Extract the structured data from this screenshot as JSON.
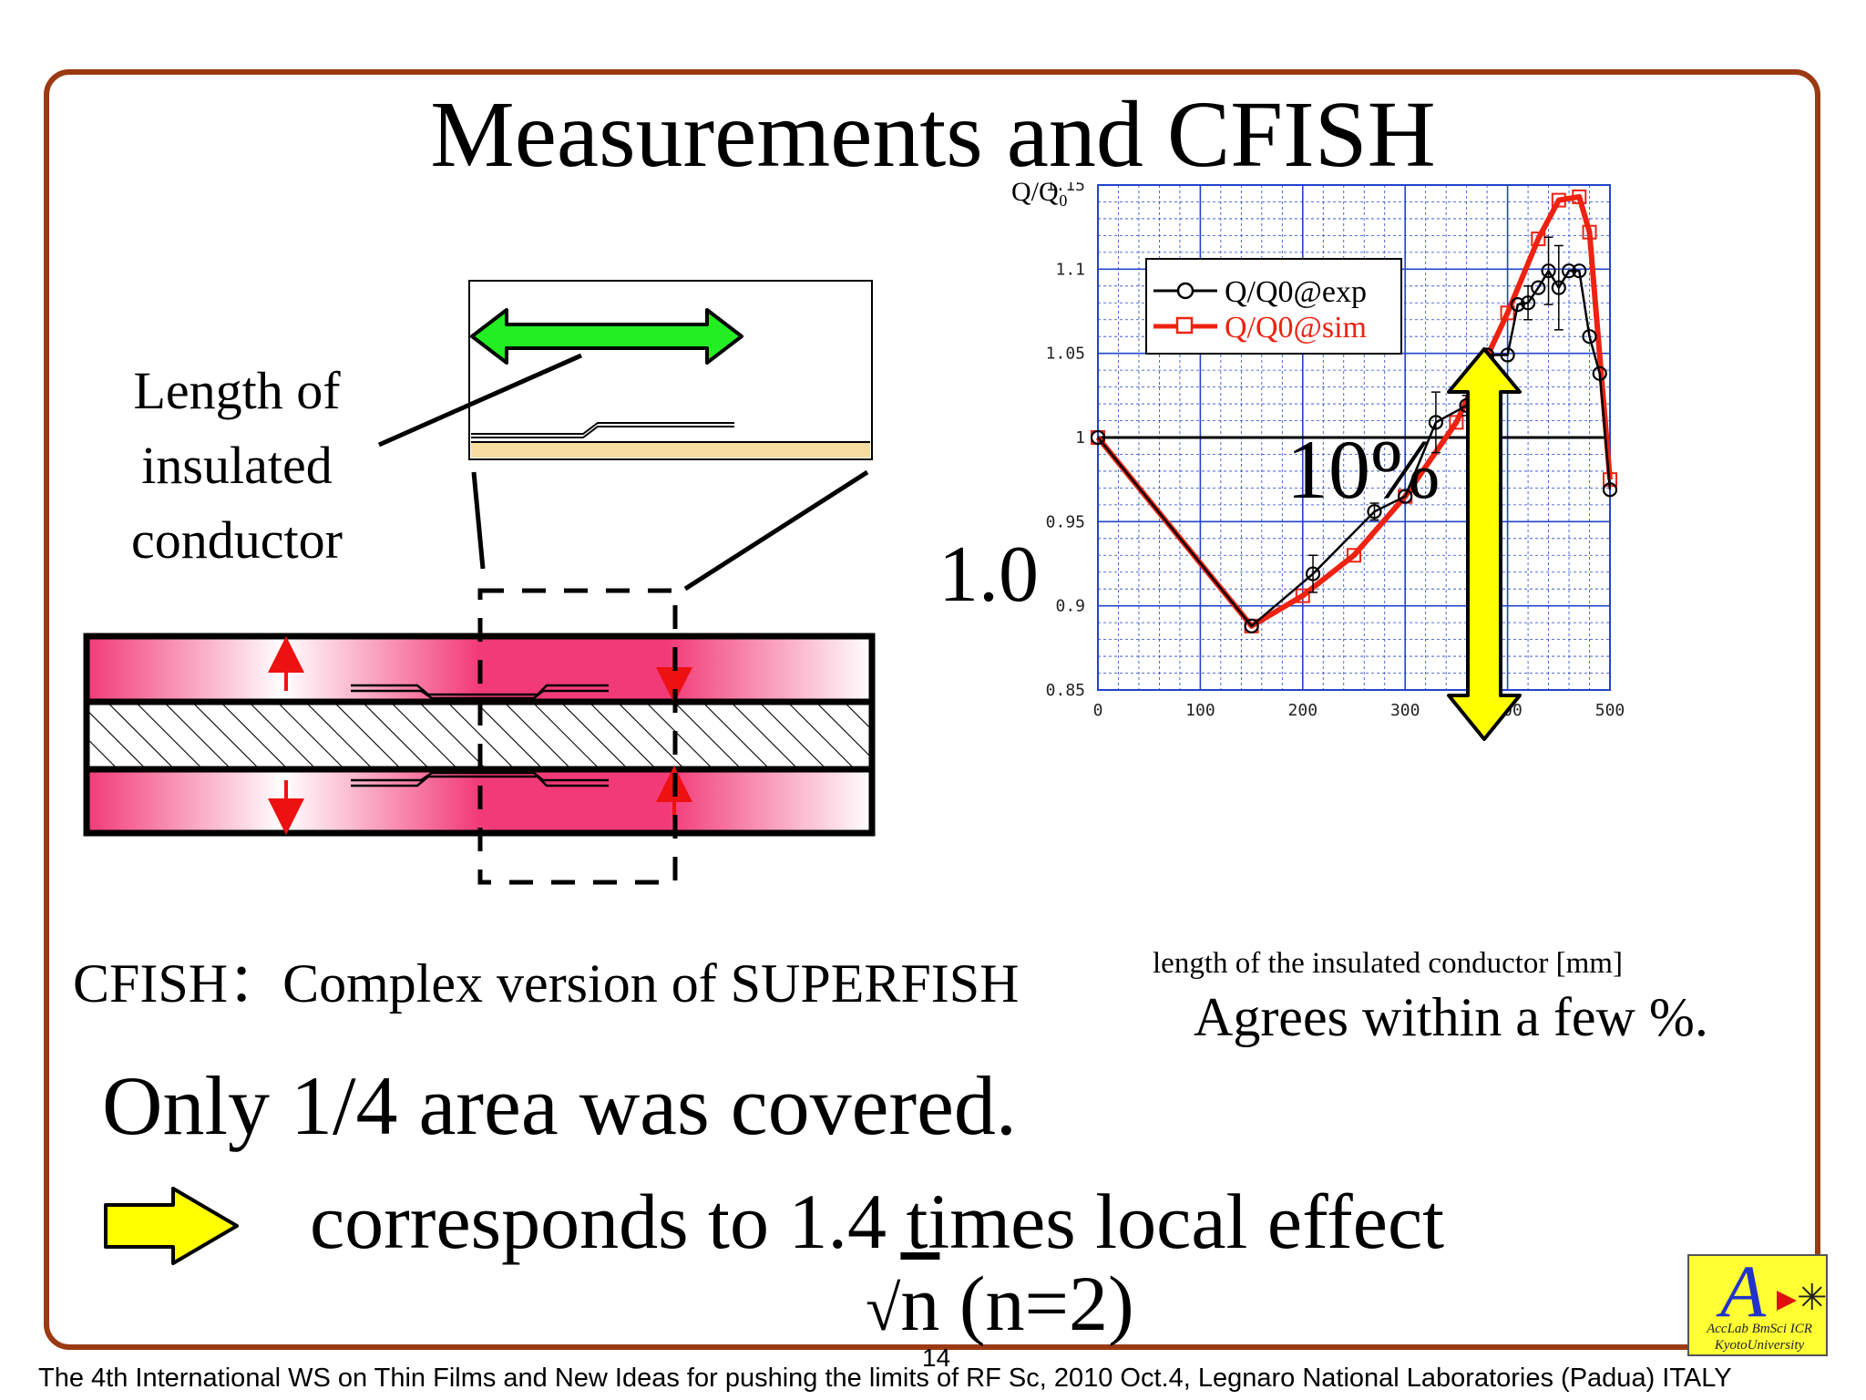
{
  "slide": {
    "title": "Measurements and CFISH",
    "length_label": "Length of insulated conductor",
    "cfish_note": "CFISH：Complex version of SUPERFISH",
    "agree_note": "Agrees within a few %.",
    "coverage_note": "Only 1/4 area was covered.",
    "corresponds_note": "corresponds to 1.4 times local effect",
    "sqrt_radic": "√",
    "sqrt_var": "n",
    "sqrt_rest": " (n=2)",
    "footer": "The 4th International WS on Thin Films  and New Ideas for pushing the limits of RF Sc, 2010 Oct.4, Legnaro National Laboratories (Padua) ITALY",
    "page_number": "14",
    "logo_letter": "A",
    "logo_line1": "AccLab  BmSci  ICR",
    "logo_line2": "KyotoUniversity"
  },
  "annotations": {
    "percent_label": "10%",
    "baseline_label": "1.0"
  },
  "colors": {
    "frame": "#9b3a12",
    "exp_series": "#000000",
    "sim_series": "#ee2211",
    "grid": "#2244cc",
    "arrow_yellow": "#ffff00",
    "arrow_green": "#22ee22"
  },
  "chart_data": {
    "type": "line",
    "title": "",
    "xlabel": "length of the insulated conductor [mm]",
    "ylabel": "Q/Q₀",
    "xlim": [
      0,
      500
    ],
    "ylim": [
      0.85,
      1.15
    ],
    "x_ticks": [
      "0",
      "100",
      "200",
      "300",
      "400",
      "500"
    ],
    "y_ticks": [
      "0.85",
      "0.9",
      "0.95",
      "1",
      "1.05",
      "1.1",
      "1.15"
    ],
    "grid": true,
    "legend_position": "top-left",
    "series": [
      {
        "name": "Q/Q0@exp",
        "marker": "circle",
        "points": [
          [
            0,
            1.0
          ],
          [
            150,
            0.888
          ],
          [
            210,
            0.919
          ],
          [
            270,
            0.956
          ],
          [
            300,
            0.965
          ],
          [
            330,
            1.009
          ],
          [
            360,
            1.019
          ],
          [
            380,
            1.049
          ],
          [
            400,
            1.049
          ],
          [
            410,
            1.079
          ],
          [
            420,
            1.08
          ],
          [
            430,
            1.089
          ],
          [
            440,
            1.099
          ],
          [
            450,
            1.089
          ],
          [
            460,
            1.099
          ],
          [
            470,
            1.099
          ],
          [
            480,
            1.06
          ],
          [
            490,
            1.038
          ],
          [
            500,
            0.969
          ]
        ],
        "error_bars": [
          [
            210,
            0.011
          ],
          [
            270,
            0.005
          ],
          [
            330,
            0.018
          ],
          [
            360,
            0.006
          ],
          [
            420,
            0.01
          ],
          [
            440,
            0.02
          ],
          [
            450,
            0.025
          ]
        ]
      },
      {
        "name": "Q/Q0@sim",
        "marker": "square",
        "points": [
          [
            0,
            1.0
          ],
          [
            150,
            0.888
          ],
          [
            200,
            0.906
          ],
          [
            250,
            0.93
          ],
          [
            300,
            0.965
          ],
          [
            350,
            1.009
          ],
          [
            400,
            1.074
          ],
          [
            430,
            1.118
          ],
          [
            450,
            1.141
          ],
          [
            470,
            1.143
          ],
          [
            480,
            1.122
          ],
          [
            500,
            0.975
          ]
        ]
      }
    ]
  }
}
